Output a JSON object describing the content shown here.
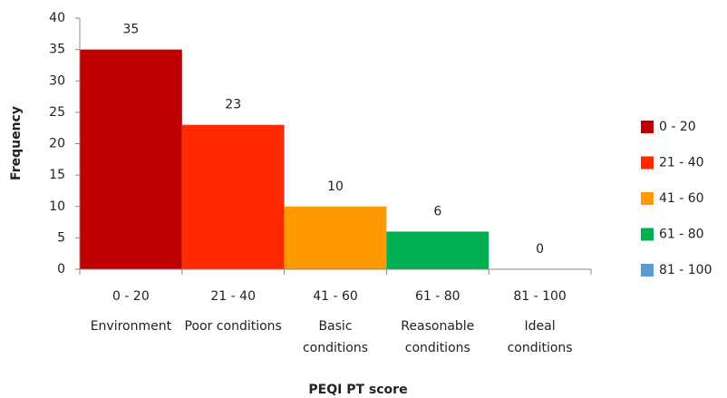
{
  "chart_data": {
    "type": "bar",
    "x_label": "PEQI PT score",
    "y_label": "Frequency",
    "categories": [
      "0 - 20",
      "21 - 40",
      "41 - 60",
      "61 - 80",
      "81 - 100"
    ],
    "category_descriptions": [
      "Environment",
      "Poor conditions",
      "Basic conditions",
      "Reasonable conditions",
      "Ideal conditions"
    ],
    "values": [
      35,
      23,
      10,
      6,
      0
    ],
    "colors": [
      "#c00000",
      "#ff2a00",
      "#ff9900",
      "#00b050",
      "#5b9bd5"
    ],
    "ylim": [
      0,
      40
    ],
    "yticks": [
      0,
      5,
      10,
      15,
      20,
      25,
      30,
      35,
      40
    ],
    "grid": false,
    "legend": "right"
  }
}
